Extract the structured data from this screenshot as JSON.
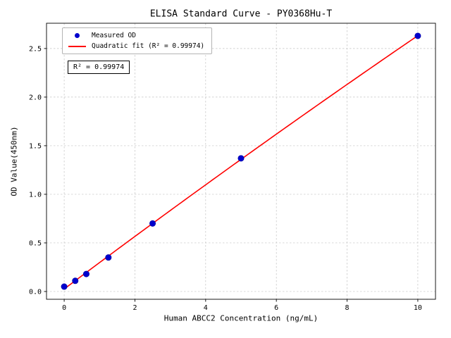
{
  "chart_data": {
    "type": "scatter",
    "title": "ELISA Standard Curve - PY0368Hu-T",
    "xlabel": "Human ABCC2 Concentration (ng/mL)",
    "ylabel": "OD Value(450nm)",
    "xlim": [
      -0.5,
      10.5
    ],
    "ylim": [
      -0.08,
      2.76
    ],
    "xticks": [
      0,
      2,
      4,
      6,
      8,
      10
    ],
    "yticks": [
      0.0,
      0.5,
      1.0,
      1.5,
      2.0,
      2.5
    ],
    "grid": true,
    "grid_style": "dashed",
    "legend_position": "upper-left",
    "colors": {
      "grid": "#c3c3c3",
      "frame": "#000000"
    },
    "series": [
      {
        "name": "Measured OD",
        "kind": "scatter",
        "color": "#0000cd",
        "x": [
          0,
          0.3125,
          0.625,
          1.25,
          2.5,
          5,
          10
        ],
        "y": [
          0.05,
          0.11,
          0.18,
          0.35,
          0.7,
          1.37,
          2.63
        ]
      },
      {
        "name": "Quadratic fit (R² = 0.99974)",
        "kind": "quadratic-fit-line",
        "color": "#ff0000"
      }
    ],
    "annotation": "R² = 0.99974",
    "r_squared": 0.99974
  }
}
